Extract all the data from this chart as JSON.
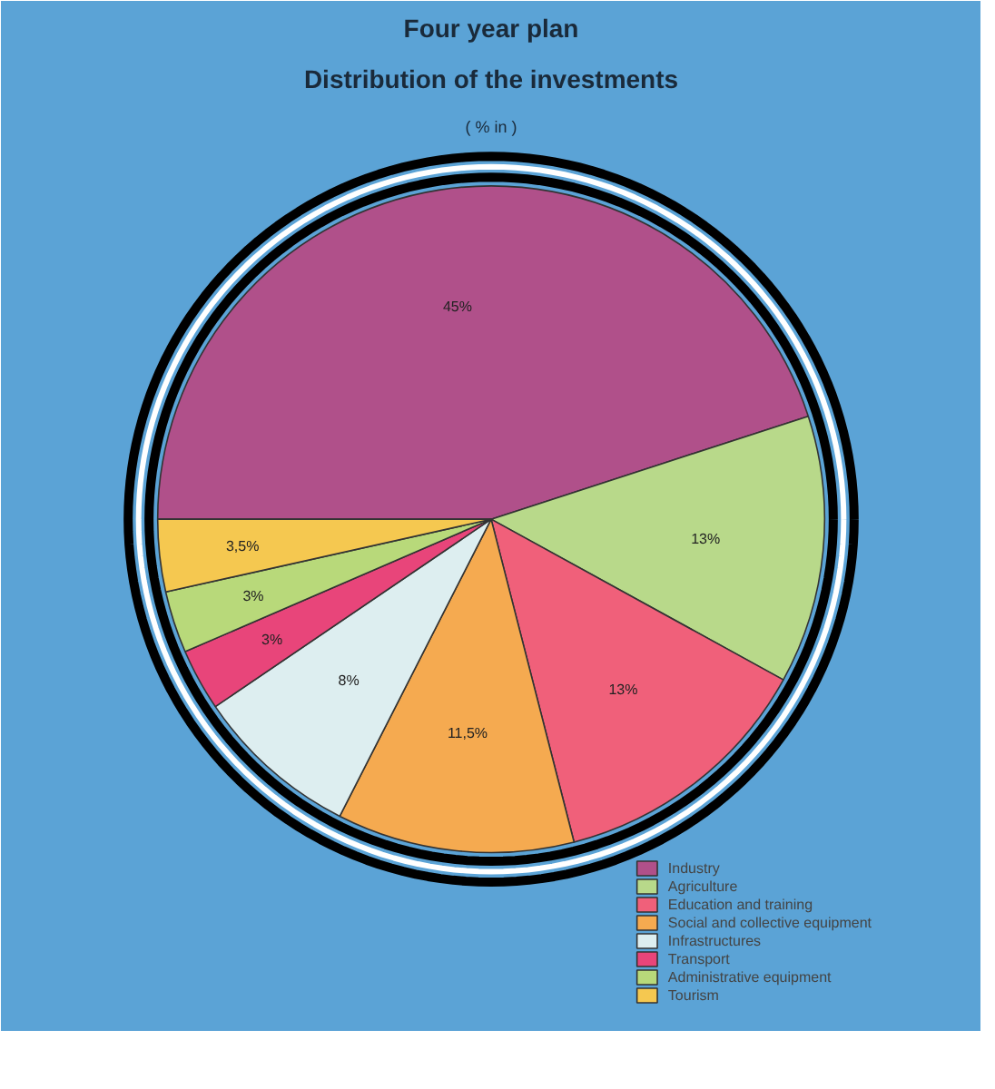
{
  "chart_data": {
    "type": "pie",
    "title": "Four year plan",
    "subtitle": "Distribution of the investments",
    "annotations": [
      "( % in )"
    ],
    "categories": [
      "Industry",
      "Agriculture",
      "Education and training",
      "Social and collective equipment",
      "Infrastructures",
      "Transport",
      "Administrative equipment",
      "Tourism"
    ],
    "values": [
      45,
      13,
      13,
      11.5,
      8,
      3,
      3,
      3.5
    ],
    "value_labels": [
      "45%",
      "13%",
      "13%",
      "11,5%",
      "8%",
      "3%",
      "3%",
      "3,5%"
    ],
    "colors": [
      "#b0508a",
      "#b8d98a",
      "#f0607a",
      "#f5aa50",
      "#ddeef0",
      "#e8457a",
      "#b8d97a",
      "#f5c850"
    ],
    "legend": "bottom right"
  }
}
